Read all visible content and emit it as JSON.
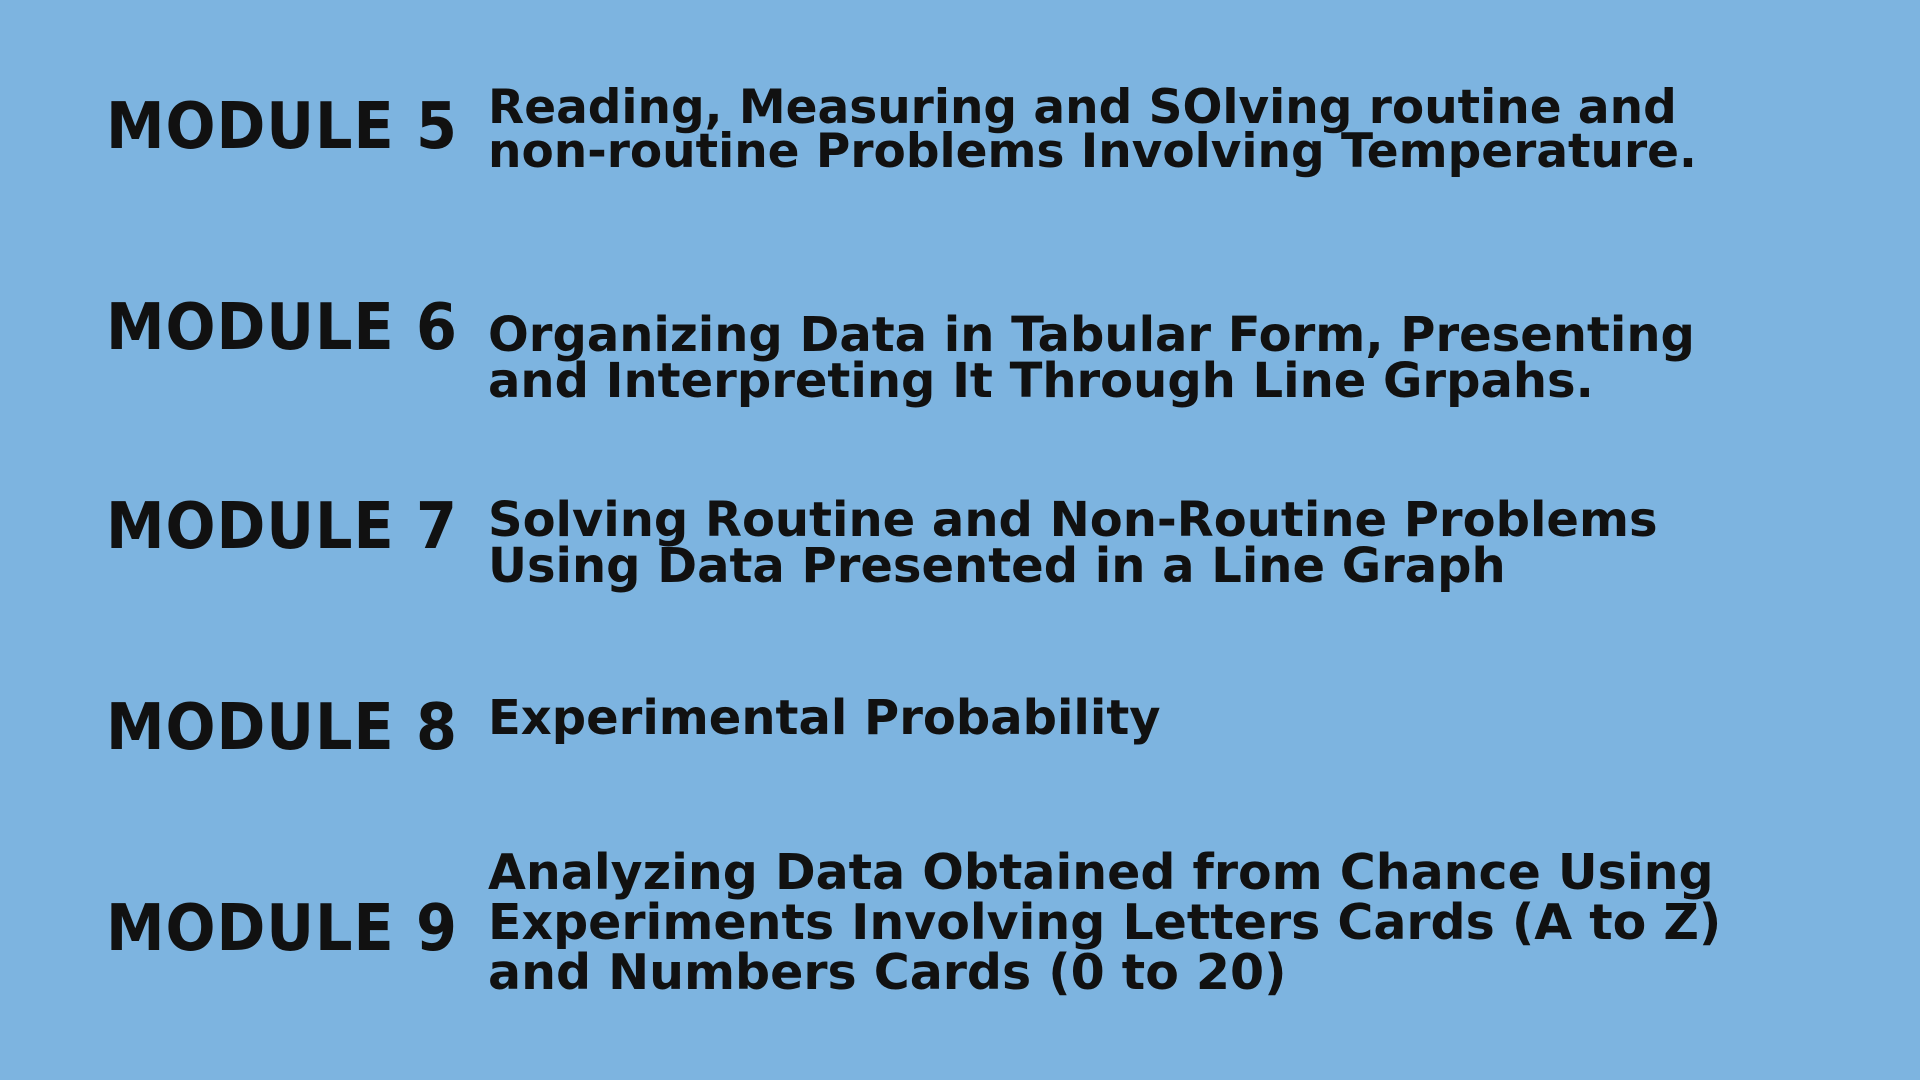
{
  "colors": {
    "background": "#7DB4E0",
    "text": "#111111"
  },
  "modules": [
    {
      "label": "MODULE 5",
      "description": "Reading, Measuring and SOlving routine and non-routine Problems Involving Temperature."
    },
    {
      "label": "MODULE 6",
      "description": "Organizing Data in Tabular Form, Presenting and Interpreting It Through Line Grpahs."
    },
    {
      "label": "MODULE 7",
      "description": "Solving Routine and Non-Routine Problems Using Data Presented in a Line Graph"
    },
    {
      "label": "MODULE 8",
      "description": "Experimental Probability"
    },
    {
      "label": "MODULE 9",
      "description": "Analyzing Data Obtained from Chance Using Experiments Involving Letters Cards (A to Z) and Numbers Cards (0 to 20)"
    }
  ]
}
